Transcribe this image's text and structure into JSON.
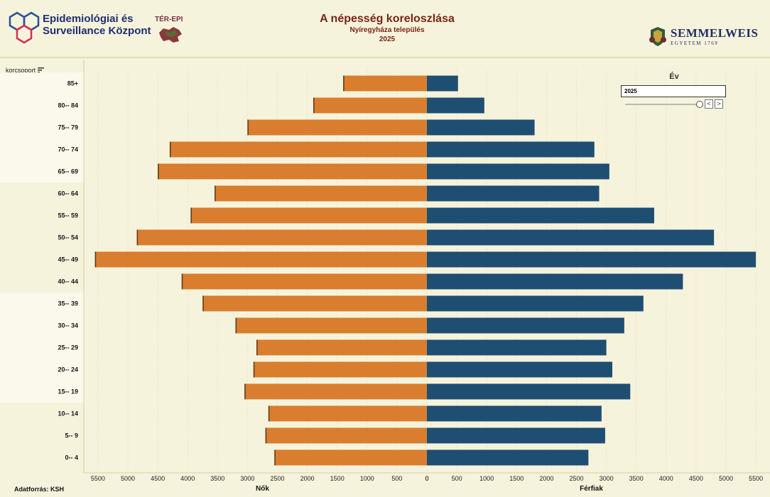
{
  "header": {
    "org_line1": "Epidemiológiai és",
    "org_line2": "Surveillance Központ",
    "ter_epi": "TÉR-EPI",
    "title": "A népesség koreloszlása",
    "subtitle": "Nyíregyháza település",
    "year": "2025",
    "semmelweis": "SEMMELWEIS",
    "semmelweis_sub": "EGYETEM 1769"
  },
  "colors": {
    "female": "#d97d2e",
    "male": "#1f4e73",
    "background": "#f6f3dc",
    "band": "#fbf9ec"
  },
  "filter": {
    "column_label": "korcsoport",
    "year_label": "Év",
    "year_value": "2025",
    "prev": "<",
    "next": ">"
  },
  "source": "Adatforrás: KSH",
  "chart_data": {
    "type": "bar",
    "orientation": "horizontal-population-pyramid",
    "categories": [
      "85+",
      "80-- 84",
      "75-- 79",
      "70-- 74",
      "65-- 69",
      "60-- 64",
      "55-- 59",
      "50-- 54",
      "45-- 49",
      "40-- 44",
      "35-- 39",
      "30-- 34",
      "25-- 29",
      "20-- 24",
      "15-- 19",
      "10-- 14",
      "5-- 9",
      "0-- 4"
    ],
    "series": [
      {
        "name": "Nők",
        "values": [
          1400,
          1900,
          3000,
          4300,
          4500,
          3550,
          3950,
          4850,
          5550,
          4100,
          3750,
          3200,
          2850,
          2900,
          3050,
          2650,
          2700,
          2550
        ]
      },
      {
        "name": "Férfiak",
        "values": [
          520,
          960,
          1800,
          2800,
          3050,
          2880,
          3800,
          4800,
          5500,
          4280,
          3620,
          3300,
          3000,
          3100,
          3400,
          2920,
          2980,
          2700
        ]
      }
    ],
    "x_ticks_left": [
      "5500",
      "5000",
      "4500",
      "4000",
      "3500",
      "3000",
      "2500",
      "2000",
      "1500",
      "1000",
      "500",
      "0"
    ],
    "x_ticks_right": [
      "0",
      "500",
      "1000",
      "1500",
      "2000",
      "2500",
      "3000",
      "3500",
      "4000",
      "4500",
      "5000",
      "5500"
    ],
    "xlabel_left": "Nők",
    "xlabel_right": "Férfiak",
    "xlim": [
      0,
      5500
    ]
  }
}
